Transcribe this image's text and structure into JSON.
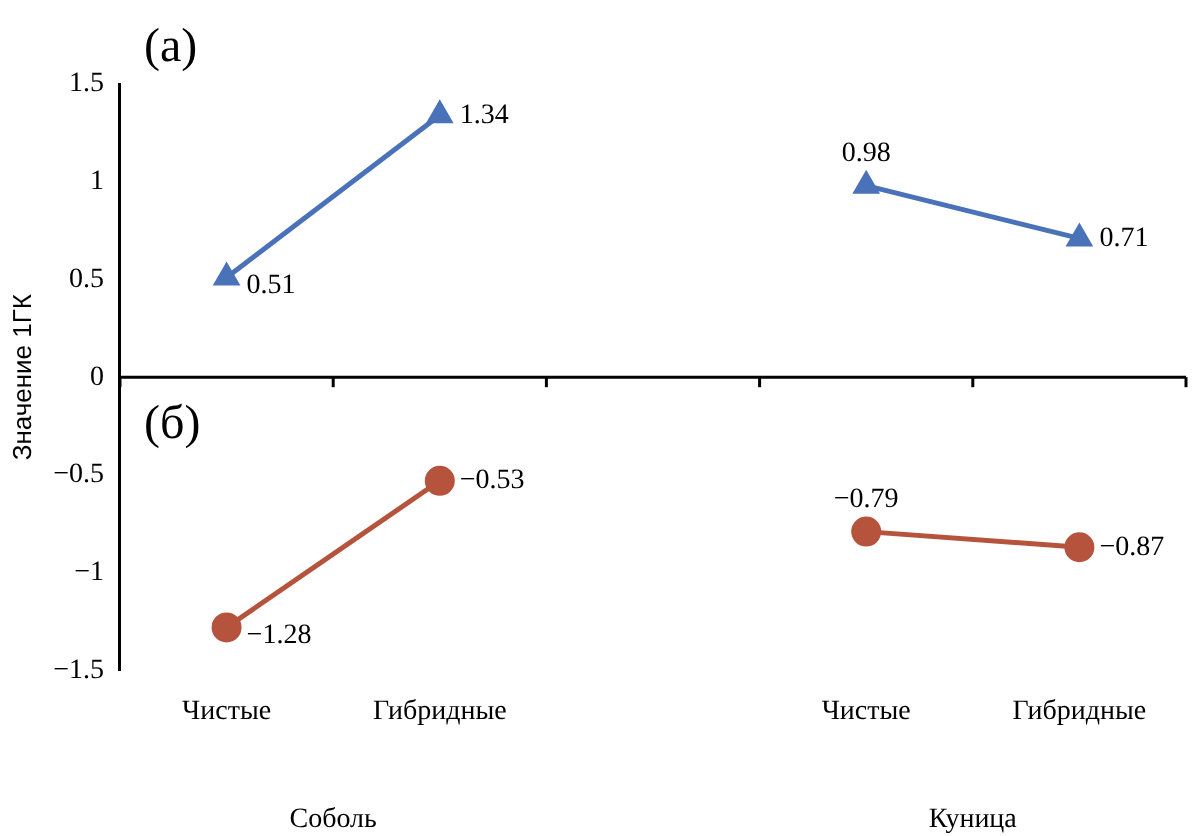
{
  "chart_data": {
    "type": "line",
    "ylabel": "Значение 1ГК",
    "categories": [
      "Чистые",
      "Гибридные",
      null,
      "Чистые",
      "Гибридные"
    ],
    "series": [
      {
        "color": "#4a72b8",
        "marker": "triangle",
        "values": [
          0.51,
          1.34,
          null,
          null,
          null
        ],
        "value_labels": [
          "0.51",
          "1.34",
          null,
          null,
          null
        ]
      },
      {
        "color": "#4a72b8",
        "marker": "triangle",
        "values": [
          null,
          null,
          null,
          0.98,
          0.71
        ],
        "value_labels": [
          null,
          null,
          null,
          "0.98",
          "0.71"
        ]
      },
      {
        "color": "#b5533c",
        "marker": "circle",
        "values": [
          -1.28,
          -0.53,
          null,
          null,
          null
        ],
        "value_labels": [
          "−1.28",
          "−0.53",
          null,
          null,
          null
        ]
      },
      {
        "color": "#b5533c",
        "marker": "circle",
        "values": [
          null,
          null,
          null,
          -0.79,
          -0.87
        ],
        "value_labels": [
          null,
          null,
          null,
          "−0.79",
          "−0.87"
        ]
      }
    ],
    "ylim": [
      -1.5,
      1.5
    ],
    "yticks": [
      -1.5,
      -1,
      -0.5,
      0,
      0.5,
      1,
      1.5
    ],
    "ref_lines": [
      {
        "axis": "y",
        "value": 0
      }
    ],
    "annotations": [
      "(а)",
      "(б)",
      "Соболь",
      "Куница"
    ],
    "grid": false,
    "legend": false
  }
}
